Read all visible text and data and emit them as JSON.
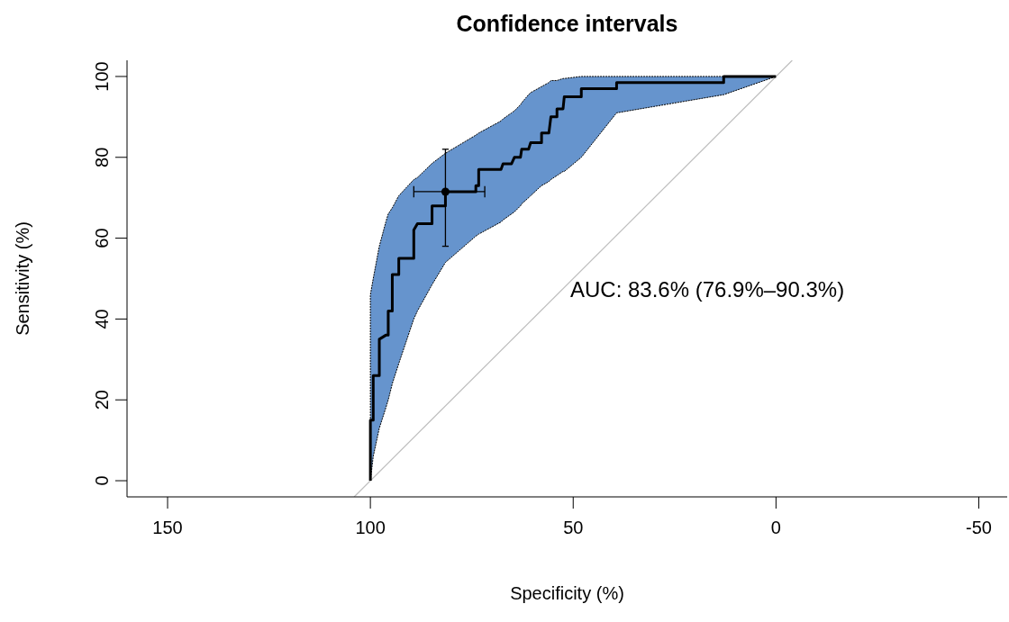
{
  "chart_data": {
    "type": "line",
    "title": "Confidence intervals",
    "xlabel": "Specificity (%)",
    "ylabel": "Sensitivity (%)",
    "xlim": [
      160,
      -57
    ],
    "ylim": [
      -4,
      104
    ],
    "xticks": [
      150,
      100,
      50,
      0,
      -50
    ],
    "yticks": [
      0,
      20,
      40,
      60,
      80,
      100
    ],
    "annotations": [
      "AUC: 83.6% (76.9%–90.3%)"
    ],
    "series": [
      {
        "color": "#bebebe",
        "x": [
          104,
          -4
        ],
        "values": [
          -4,
          104
        ]
      },
      {
        "color": "#000000",
        "x": [
          100,
          100,
          99.3,
          99.3,
          97.8,
          97.8,
          96.2,
          95.6,
          95.6,
          94.6,
          94.6,
          93,
          93,
          89.3,
          89.3,
          88.4,
          84.8,
          84.8,
          81.5,
          81.5,
          74,
          74,
          73.3,
          73.3,
          67.8,
          67.3,
          65.2,
          64.5,
          63,
          62.7,
          61,
          60.5,
          57.8,
          57.8,
          56,
          55.5,
          54,
          54,
          52.5,
          52.2,
          48,
          48,
          39.3,
          39.3,
          12.9,
          12.9,
          0
        ],
        "values": [
          0,
          15,
          15,
          26,
          26,
          35,
          36,
          36,
          42,
          42,
          51,
          51,
          55,
          55,
          62,
          63.6,
          63.6,
          68,
          68,
          71.5,
          71.5,
          73,
          73,
          77,
          77,
          78.4,
          78.4,
          80,
          80,
          82,
          82,
          83.6,
          83.6,
          86,
          86,
          90,
          90,
          92,
          92,
          95,
          95,
          97,
          97,
          98.5,
          98.5,
          100,
          100
        ],
        "lower": [
          0,
          0,
          6,
          6,
          13,
          13,
          18,
          20,
          20,
          24,
          24,
          29,
          29,
          40,
          40,
          42,
          48.5,
          48.5,
          54,
          54,
          60.5,
          60.5,
          61,
          61,
          64,
          64.5,
          66,
          66.5,
          68,
          68.5,
          70,
          70.5,
          73,
          73,
          74,
          74.5,
          75.5,
          75.5,
          76.5,
          76.5,
          80,
          80,
          91,
          91,
          95.5,
          95.5,
          100
        ],
        "upper": [
          0,
          46,
          50,
          50,
          58,
          58,
          64,
          66,
          66,
          67.5,
          67.5,
          70.5,
          70.5,
          74.5,
          74.5,
          75,
          78.5,
          78.5,
          81,
          81,
          85.5,
          85.5,
          86,
          86,
          89,
          89.5,
          91,
          91.5,
          93,
          93.5,
          95.5,
          96,
          97.5,
          97.5,
          98.5,
          99,
          99,
          99,
          99.5,
          99.5,
          100,
          100,
          100,
          100,
          100,
          100,
          100
        ]
      },
      {
        "type": "scatter",
        "color": "#000000",
        "x": [
          81.5
        ],
        "values": [
          71.5
        ],
        "errors": [
          [
            58,
            82
          ]
        ],
        "xerrors": [
          [
            71.8,
            89.3
          ]
        ]
      }
    ]
  }
}
